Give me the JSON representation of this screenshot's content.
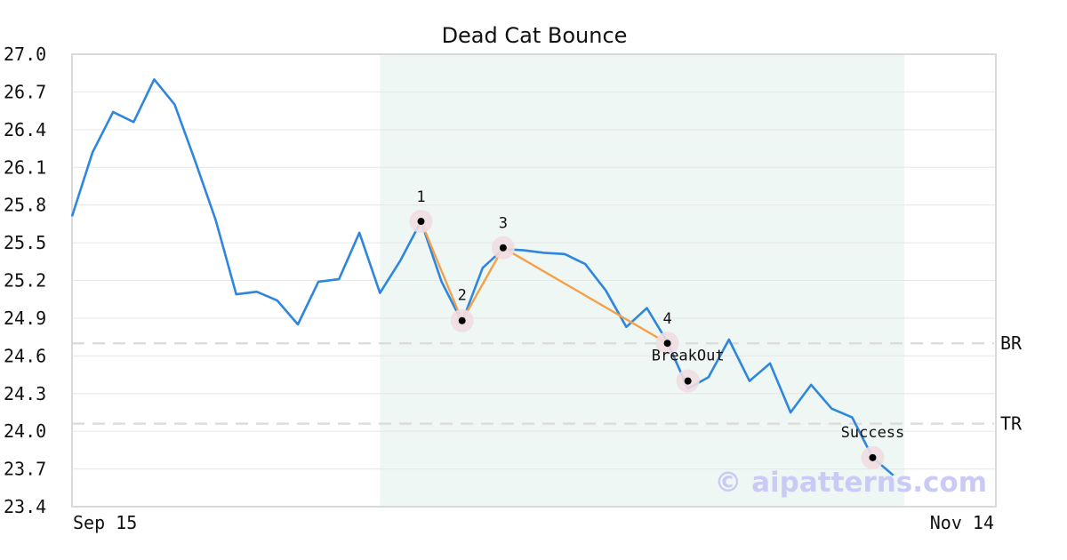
{
  "chart_data": {
    "type": "line",
    "title": "Dead Cat Bounce",
    "ylim": [
      23.4,
      27.0
    ],
    "y_ticks": [
      "27.0",
      "26.7",
      "26.4",
      "26.1",
      "25.8",
      "25.5",
      "25.2",
      "24.9",
      "24.6",
      "24.3",
      "24.0",
      "23.7",
      "23.4"
    ],
    "x_tick_labels": [
      "Sep 15",
      "Nov 14"
    ],
    "grid": true,
    "series": [
      {
        "color": "#2f86dd",
        "values": [
          25.71,
          26.22,
          26.54,
          26.46,
          26.8,
          26.6,
          26.15,
          25.68,
          25.09,
          25.11,
          25.04,
          24.85,
          25.19,
          25.21,
          25.58,
          25.1,
          25.36,
          25.67,
          25.19,
          24.87,
          25.3,
          25.45,
          25.44,
          25.42,
          25.41,
          25.33,
          25.12,
          24.83,
          24.98,
          24.71,
          24.34,
          24.43,
          24.73,
          24.4,
          24.54,
          24.15,
          24.37,
          24.18,
          24.11,
          23.79,
          23.65
        ]
      }
    ],
    "highlight_range": {
      "start_index": 15,
      "end_index": 40,
      "color": "#eef7f3"
    },
    "pattern": {
      "color": "#f5a04a",
      "points": [
        {
          "label": "1",
          "index": 17,
          "value": 25.67
        },
        {
          "label": "2",
          "index": 19,
          "value": 24.88
        },
        {
          "label": "3",
          "index": 21,
          "value": 25.46
        },
        {
          "label": "4",
          "index": 29,
          "value": 24.7
        }
      ]
    },
    "markers": [
      {
        "label": "BreakOut",
        "index": 30,
        "value": 24.4
      },
      {
        "label": "Success",
        "index": 39,
        "value": 23.79
      }
    ],
    "levels": [
      {
        "label": "BR",
        "value": 24.7
      },
      {
        "label": "TR",
        "value": 24.06
      }
    ],
    "watermark": "© aipatterns.com"
  }
}
